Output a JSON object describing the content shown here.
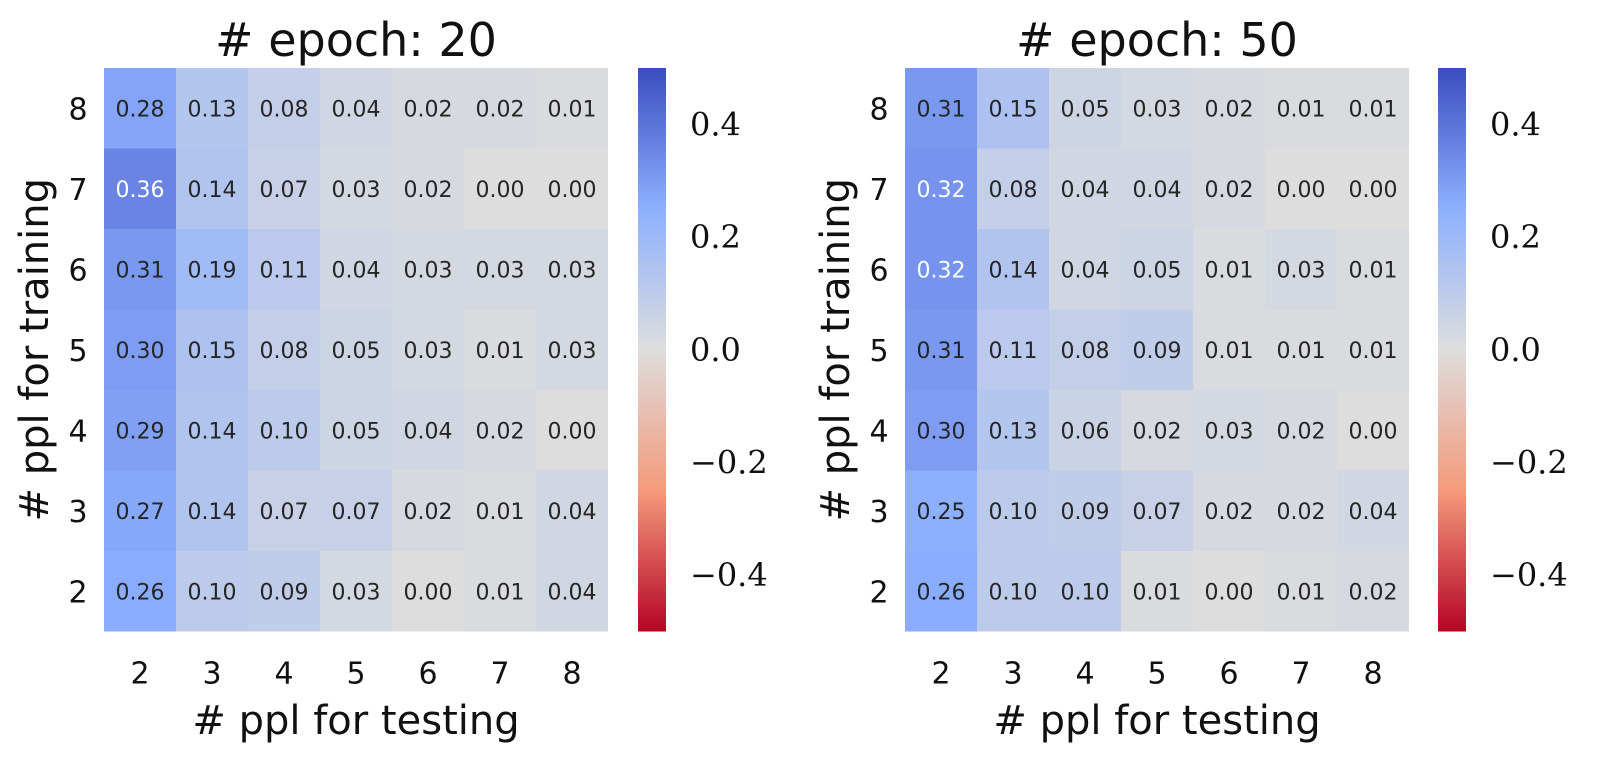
{
  "chart_data": [
    {
      "type": "heatmap",
      "title": "# epoch: 20",
      "xlabel": "# ppl for testing",
      "ylabel": "# ppl for training",
      "x": [
        "2",
        "3",
        "4",
        "5",
        "6",
        "7",
        "8"
      ],
      "y": [
        "8",
        "7",
        "6",
        "5",
        "4",
        "3",
        "2"
      ],
      "values": [
        [
          "0.28",
          "0.13",
          "0.08",
          "0.04",
          "0.02",
          "0.02",
          "0.01"
        ],
        [
          "0.36",
          "0.14",
          "0.07",
          "0.03",
          "0.02",
          "0.00",
          "0.00"
        ],
        [
          "0.31",
          "0.19",
          "0.11",
          "0.04",
          "0.03",
          "0.03",
          "0.03"
        ],
        [
          "0.30",
          "0.15",
          "0.08",
          "0.05",
          "0.03",
          "0.01",
          "0.03"
        ],
        [
          "0.29",
          "0.14",
          "0.10",
          "0.05",
          "0.04",
          "0.02",
          "0.00"
        ],
        [
          "0.27",
          "0.14",
          "0.07",
          "0.07",
          "0.02",
          "0.01",
          "0.04"
        ],
        [
          "0.26",
          "0.10",
          "0.09",
          "0.03",
          "0.00",
          "0.01",
          "0.04"
        ]
      ],
      "colorbar": {
        "range": [
          -0.5,
          0.5
        ],
        "ticks": [
          "0.4",
          "0.2",
          "0.0",
          "−0.2",
          "−0.4"
        ],
        "colormap": "coolwarm (reversed)"
      }
    },
    {
      "type": "heatmap",
      "title": "# epoch: 50",
      "xlabel": "# ppl for testing",
      "ylabel": "# ppl for training",
      "x": [
        "2",
        "3",
        "4",
        "5",
        "6",
        "7",
        "8"
      ],
      "y": [
        "8",
        "7",
        "6",
        "5",
        "4",
        "3",
        "2"
      ],
      "values": [
        [
          "0.31",
          "0.15",
          "0.05",
          "0.03",
          "0.02",
          "0.01",
          "0.01"
        ],
        [
          "0.32",
          "0.08",
          "0.04",
          "0.04",
          "0.02",
          "0.00",
          "0.00"
        ],
        [
          "0.32",
          "0.14",
          "0.04",
          "0.05",
          "0.01",
          "0.03",
          "0.01"
        ],
        [
          "0.31",
          "0.11",
          "0.08",
          "0.09",
          "0.01",
          "0.01",
          "0.01"
        ],
        [
          "0.30",
          "0.13",
          "0.06",
          "0.02",
          "0.03",
          "0.02",
          "0.00"
        ],
        [
          "0.25",
          "0.10",
          "0.09",
          "0.07",
          "0.02",
          "0.02",
          "0.04"
        ],
        [
          "0.26",
          "0.10",
          "0.10",
          "0.01",
          "0.00",
          "0.01",
          "0.02"
        ]
      ],
      "colorbar": {
        "range": [
          -0.5,
          0.5
        ],
        "ticks": [
          "0.4",
          "0.2",
          "0.0",
          "−0.2",
          "−0.4"
        ],
        "colormap": "coolwarm (reversed)"
      }
    }
  ]
}
